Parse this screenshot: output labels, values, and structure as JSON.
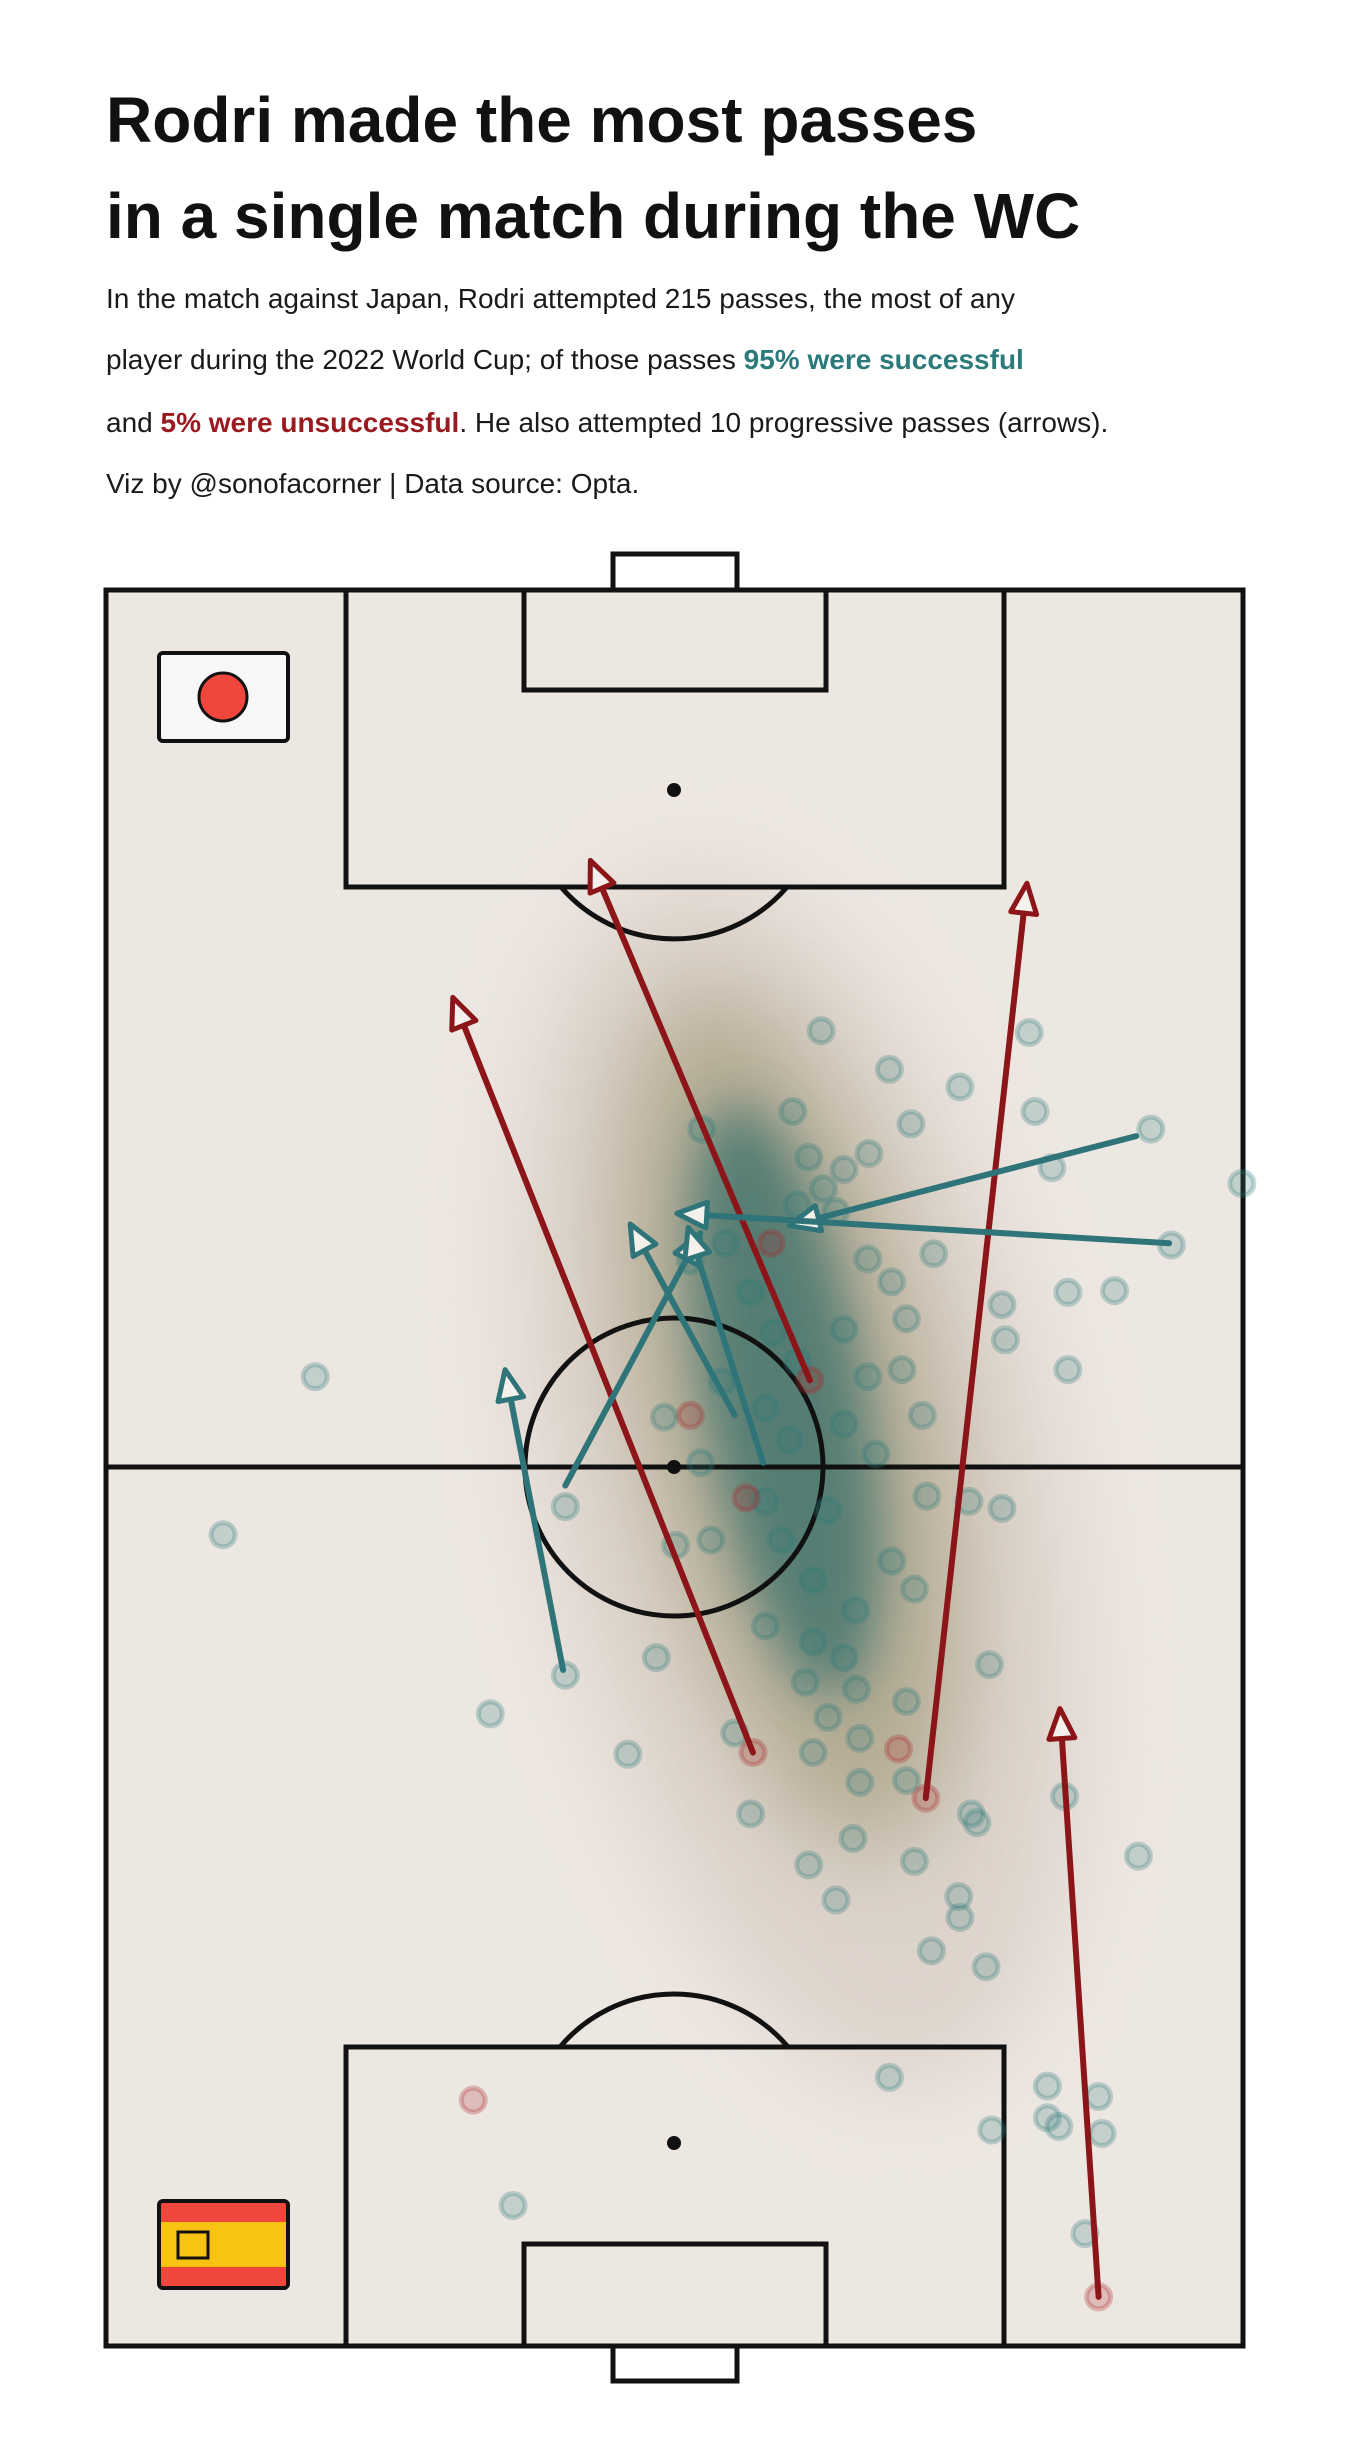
{
  "chart_data": {
    "type": "scatter",
    "title": [
      "Rodri made the most passes",
      "in a single match during the WC"
    ],
    "subtitle": {
      "line1": "In the match against Japan, Rodri attempted 215 passes, the most of any",
      "line2": "player during the 2022 World Cup; of those passes ",
      "successful": "95% were successful",
      "line3": "and ",
      "unsuccessful": "5% were unsuccessful",
      "line3_end": ". He also attempted 10 progressive passes (arrows).",
      "credit": "Viz by @sonofacorner | Data source: Opta."
    },
    "xlim": [
      0,
      100
    ],
    "ylim": [
      0,
      100
    ],
    "series": [
      {
        "color": "#2d7a7a",
        "x": [
          62.9,
          81.2,
          68.9,
          75.1,
          60.4,
          70.8,
          81.7,
          52.4,
          91.9,
          83.2,
          61.8,
          67.1,
          64.9,
          99.9,
          63.1,
          60.8,
          64.2,
          93.7,
          72.8,
          54.5,
          51.4,
          67.0,
          56.7,
          69.1,
          84.6,
          88.7,
          78.8,
          70.4,
          79.1,
          64.9,
          58.7,
          60.8,
          70.0,
          84.6,
          18.4,
          54.2,
          67.0,
          49.1,
          58.0,
          60.1,
          64.9,
          67.7,
          71.8,
          52.3,
          58.0,
          72.2,
          75.9,
          78.8,
          40.4,
          63.5,
          53.2,
          10.3,
          50.1,
          59.4,
          69.1,
          62.2,
          71.1,
          65.9,
          58.0,
          62.2,
          64.9,
          48.4,
          77.7,
          40.4,
          61.5,
          66.0,
          70.4,
          33.8,
          63.5,
          55.3,
          66.3,
          45.9,
          62.2,
          70.4,
          66.3,
          76.1,
          84.3,
          56.7,
          76.6,
          65.7,
          71.1,
          61.8,
          90.8,
          64.2,
          75.0,
          75.1,
          72.6,
          77.4,
          68.9,
          82.8,
          87.3,
          82.8,
          83.8,
          87.6,
          77.9,
          35.8,
          86.1
        ],
        "y": [
          74.9,
          74.8,
          72.7,
          71.7,
          70.3,
          69.6,
          70.3,
          69.3,
          69.3,
          67.1,
          67.7,
          67.9,
          67.0,
          66.2,
          65.9,
          65.0,
          64.6,
          62.7,
          62.2,
          62.8,
          61.8,
          61.9,
          60.0,
          60.6,
          60.0,
          60.1,
          59.3,
          58.5,
          57.3,
          57.9,
          57.7,
          56.1,
          55.6,
          55.6,
          55.2,
          54.9,
          55.2,
          52.9,
          53.4,
          51.6,
          52.5,
          50.8,
          53.0,
          50.3,
          48.1,
          48.4,
          48.1,
          47.7,
          47.8,
          47.6,
          45.9,
          46.2,
          45.6,
          45.9,
          44.7,
          43.6,
          43.1,
          41.9,
          41.0,
          40.1,
          39.2,
          39.2,
          38.8,
          38.2,
          37.8,
          37.4,
          36.7,
          36.0,
          35.8,
          34.9,
          34.6,
          33.7,
          33.8,
          32.2,
          32.1,
          30.3,
          31.3,
          30.3,
          29.8,
          28.9,
          27.6,
          27.4,
          27.9,
          25.4,
          25.6,
          24.4,
          22.5,
          21.6,
          15.3,
          14.8,
          14.2,
          13.0,
          12.5,
          12.1,
          12.3,
          8.0,
          6.4
        ]
      },
      {
        "color": "#a8262b",
        "x": [
          58.5,
          61.9,
          51.4,
          56.3,
          56.9,
          69.7,
          72.1,
          32.3,
          87.3
        ],
        "y": [
          62.8,
          55.0,
          53.0,
          48.3,
          33.8,
          34.0,
          31.2,
          14.0,
          2.8
        ]
      }
    ],
    "arrows": [
      {
        "color": "#8b1518",
        "x": [
          56.9,
          61.9,
          72.1,
          87.3
        ],
        "y": [
          33.8,
          55.0,
          31.2,
          2.8
        ],
        "end_x": [
          30.5,
          42.6,
          81.0,
          83.9
        ],
        "end_y": [
          76.8,
          84.6,
          83.3,
          36.3
        ]
      },
      {
        "color": "#2f7478",
        "x": [
          90.6,
          93.5,
          40.4,
          57.8,
          55.3,
          40.2
        ],
        "y": [
          68.9,
          62.8,
          49.0,
          50.3,
          53.0,
          38.5
        ],
        "end_x": [
          60.1,
          50.2,
          52.3,
          51.2,
          46.1,
          35.1
        ],
        "end_y": [
          63.8,
          64.5,
          63.4,
          63.7,
          63.9,
          55.6
        ]
      }
    ]
  }
}
